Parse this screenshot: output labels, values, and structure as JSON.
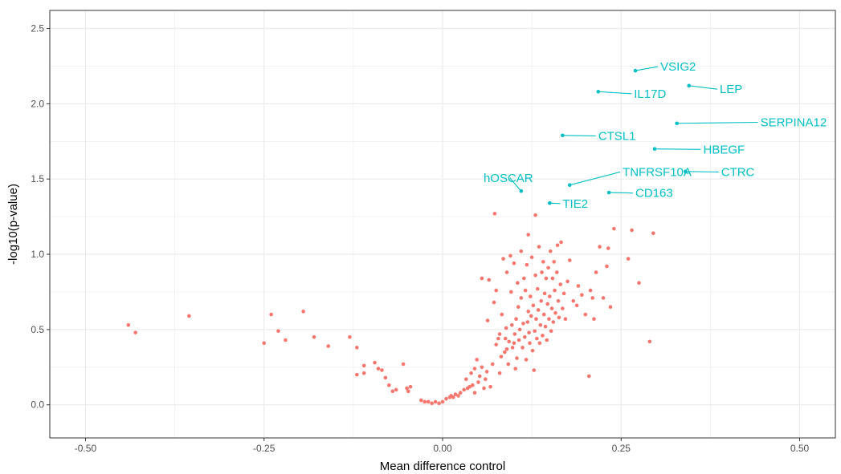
{
  "chart_data": {
    "type": "scatter",
    "title": "",
    "xlabel": "Mean difference control",
    "ylabel": "-log10(p-value)",
    "xlim": [
      -0.55,
      0.55
    ],
    "ylim": [
      -0.22,
      2.62
    ],
    "x_ticks": [
      -0.5,
      -0.25,
      0.0,
      0.25,
      0.5
    ],
    "x_tick_labels": [
      "-0.50",
      "-0.25",
      "0.00",
      "0.25",
      "0.50"
    ],
    "y_ticks": [
      0.0,
      0.5,
      1.0,
      1.5,
      2.0,
      2.5
    ],
    "y_tick_labels": [
      "0.0",
      "0.5",
      "1.0",
      "1.5",
      "2.0",
      "2.5"
    ],
    "grid": true,
    "colors": {
      "not_significant": "#F8766D",
      "significant": "#00BFC4",
      "grid": "#ebebeb",
      "panel_border": "#333333"
    },
    "significant_points": [
      {
        "label": "VSIG2",
        "x": 0.27,
        "y": 2.22,
        "label_x": 0.305,
        "label_y": 2.22
      },
      {
        "label": "LEP",
        "x": 0.345,
        "y": 2.12,
        "label_x": 0.388,
        "label_y": 2.07
      },
      {
        "label": "IL17D",
        "x": 0.218,
        "y": 2.08,
        "label_x": 0.268,
        "label_y": 2.04
      },
      {
        "label": "SERPINA12",
        "x": 0.328,
        "y": 1.87,
        "label_x": 0.445,
        "label_y": 1.85
      },
      {
        "label": "CTSL1",
        "x": 0.168,
        "y": 1.79,
        "label_x": 0.218,
        "label_y": 1.76
      },
      {
        "label": "HBEGF",
        "x": 0.297,
        "y": 1.7,
        "label_x": 0.365,
        "label_y": 1.67
      },
      {
        "label": "CTRC",
        "x": 0.34,
        "y": 1.55,
        "label_x": 0.39,
        "label_y": 1.52
      },
      {
        "label": "TNFRSF10A",
        "x": 0.178,
        "y": 1.46,
        "label_x": 0.252,
        "label_y": 1.52
      },
      {
        "label": "hOSCAR",
        "x": 0.11,
        "y": 1.42,
        "label_x": 0.092,
        "label_y": 1.48
      },
      {
        "label": "CD163",
        "x": 0.233,
        "y": 1.41,
        "label_x": 0.27,
        "label_y": 1.38
      },
      {
        "label": "TIE2",
        "x": 0.15,
        "y": 1.34,
        "label_x": 0.168,
        "label_y": 1.31
      }
    ],
    "points": [
      [
        -0.44,
        0.53
      ],
      [
        -0.43,
        0.48
      ],
      [
        -0.355,
        0.59
      ],
      [
        -0.25,
        0.41
      ],
      [
        -0.24,
        0.6
      ],
      [
        -0.23,
        0.49
      ],
      [
        -0.22,
        0.43
      ],
      [
        -0.195,
        0.62
      ],
      [
        -0.18,
        0.45
      ],
      [
        -0.16,
        0.39
      ],
      [
        -0.13,
        0.45
      ],
      [
        -0.12,
        0.38
      ],
      [
        -0.12,
        0.2
      ],
      [
        -0.11,
        0.26
      ],
      [
        -0.11,
        0.21
      ],
      [
        -0.095,
        0.28
      ],
      [
        -0.09,
        0.24
      ],
      [
        -0.085,
        0.23
      ],
      [
        -0.08,
        0.18
      ],
      [
        -0.075,
        0.13
      ],
      [
        -0.07,
        0.09
      ],
      [
        -0.065,
        0.1
      ],
      [
        -0.055,
        0.27
      ],
      [
        -0.05,
        0.11
      ],
      [
        -0.048,
        0.09
      ],
      [
        -0.045,
        0.12
      ],
      [
        -0.03,
        0.03
      ],
      [
        -0.025,
        0.02
      ],
      [
        -0.02,
        0.02
      ],
      [
        -0.015,
        0.01
      ],
      [
        -0.01,
        0.02
      ],
      [
        -0.005,
        0.01
      ],
      [
        0.0,
        0.02
      ],
      [
        0.005,
        0.04
      ],
      [
        0.01,
        0.05
      ],
      [
        0.012,
        0.06
      ],
      [
        0.015,
        0.05
      ],
      [
        0.018,
        0.07
      ],
      [
        0.022,
        0.06
      ],
      [
        0.025,
        0.08
      ],
      [
        0.03,
        0.1
      ],
      [
        0.033,
        0.17
      ],
      [
        0.035,
        0.11
      ],
      [
        0.038,
        0.12
      ],
      [
        0.04,
        0.21
      ],
      [
        0.042,
        0.13
      ],
      [
        0.045,
        0.08
      ],
      [
        0.045,
        0.24
      ],
      [
        0.048,
        0.3
      ],
      [
        0.05,
        0.15
      ],
      [
        0.052,
        0.19
      ],
      [
        0.055,
        0.25
      ],
      [
        0.055,
        0.84
      ],
      [
        0.058,
        0.11
      ],
      [
        0.06,
        0.17
      ],
      [
        0.062,
        0.22
      ],
      [
        0.063,
        0.56
      ],
      [
        0.065,
        0.83
      ],
      [
        0.067,
        0.12
      ],
      [
        0.07,
        0.27
      ],
      [
        0.072,
        0.68
      ],
      [
        0.073,
        1.27
      ],
      [
        0.075,
        0.76
      ],
      [
        0.075,
        0.4
      ],
      [
        0.078,
        0.44
      ],
      [
        0.08,
        0.21
      ],
      [
        0.08,
        0.47
      ],
      [
        0.082,
        0.32
      ],
      [
        0.083,
        0.6
      ],
      [
        0.085,
        0.97
      ],
      [
        0.087,
        0.35
      ],
      [
        0.088,
        0.44
      ],
      [
        0.089,
        0.51
      ],
      [
        0.09,
        0.37
      ],
      [
        0.09,
        0.88
      ],
      [
        0.092,
        0.27
      ],
      [
        0.093,
        0.42
      ],
      [
        0.095,
        0.99
      ],
      [
        0.096,
        0.75
      ],
      [
        0.097,
        0.53
      ],
      [
        0.098,
        0.38
      ],
      [
        0.1,
        0.41
      ],
      [
        0.1,
        0.94
      ],
      [
        0.101,
        0.47
      ],
      [
        0.102,
        0.24
      ],
      [
        0.103,
        0.57
      ],
      [
        0.104,
        0.31
      ],
      [
        0.105,
        0.81
      ],
      [
        0.106,
        0.65
      ],
      [
        0.107,
        0.43
      ],
      [
        0.108,
        0.5
      ],
      [
        0.11,
        0.71
      ],
      [
        0.11,
        1.02
      ],
      [
        0.112,
        0.38
      ],
      [
        0.113,
        0.54
      ],
      [
        0.114,
        0.84
      ],
      [
        0.115,
        0.45
      ],
      [
        0.116,
        0.76
      ],
      [
        0.117,
        0.3
      ],
      [
        0.118,
        0.93
      ],
      [
        0.119,
        0.55
      ],
      [
        0.12,
        0.62
      ],
      [
        0.12,
        1.13
      ],
      [
        0.121,
        0.48
      ],
      [
        0.122,
        0.41
      ],
      [
        0.123,
        0.72
      ],
      [
        0.124,
        0.59
      ],
      [
        0.125,
        0.98
      ],
      [
        0.126,
        0.36
      ],
      [
        0.127,
        0.66
      ],
      [
        0.128,
        0.23
      ],
      [
        0.129,
        0.49
      ],
      [
        0.13,
        0.86
      ],
      [
        0.13,
        1.26
      ],
      [
        0.131,
        0.57
      ],
      [
        0.132,
        0.44
      ],
      [
        0.133,
        0.77
      ],
      [
        0.134,
        0.63
      ],
      [
        0.135,
        1.05
      ],
      [
        0.136,
        0.41
      ],
      [
        0.137,
        0.53
      ],
      [
        0.138,
        0.69
      ],
      [
        0.139,
        0.88
      ],
      [
        0.14,
        0.46
      ],
      [
        0.141,
        0.95
      ],
      [
        0.142,
        0.6
      ],
      [
        0.143,
        0.74
      ],
      [
        0.144,
        0.52
      ],
      [
        0.145,
        0.84
      ],
      [
        0.146,
        0.43
      ],
      [
        0.147,
        0.67
      ],
      [
        0.148,
        0.91
      ],
      [
        0.149,
        0.57
      ],
      [
        0.15,
        0.72
      ],
      [
        0.151,
        1.02
      ],
      [
        0.152,
        0.49
      ],
      [
        0.153,
        0.64
      ],
      [
        0.154,
        0.84
      ],
      [
        0.155,
        0.55
      ],
      [
        0.156,
        0.95
      ],
      [
        0.157,
        0.76
      ],
      [
        0.158,
        0.61
      ],
      [
        0.16,
        0.88
      ],
      [
        0.161,
        1.06
      ],
      [
        0.162,
        0.69
      ],
      [
        0.163,
        0.58
      ],
      [
        0.165,
        0.8
      ],
      [
        0.166,
        1.08
      ],
      [
        0.168,
        0.64
      ],
      [
        0.17,
        0.74
      ],
      [
        0.172,
        0.57
      ],
      [
        0.175,
        0.82
      ],
      [
        0.178,
        0.96
      ],
      [
        0.183,
        0.69
      ],
      [
        0.188,
        0.66
      ],
      [
        0.19,
        0.79
      ],
      [
        0.195,
        0.73
      ],
      [
        0.2,
        0.6
      ],
      [
        0.205,
        0.19
      ],
      [
        0.207,
        0.76
      ],
      [
        0.21,
        0.71
      ],
      [
        0.212,
        0.57
      ],
      [
        0.215,
        0.88
      ],
      [
        0.22,
        1.05
      ],
      [
        0.225,
        0.71
      ],
      [
        0.23,
        0.92
      ],
      [
        0.232,
        1.04
      ],
      [
        0.235,
        0.65
      ],
      [
        0.24,
        1.17
      ],
      [
        0.26,
        0.97
      ],
      [
        0.265,
        1.16
      ],
      [
        0.275,
        0.81
      ],
      [
        0.29,
        0.42
      ],
      [
        0.295,
        1.14
      ]
    ]
  }
}
